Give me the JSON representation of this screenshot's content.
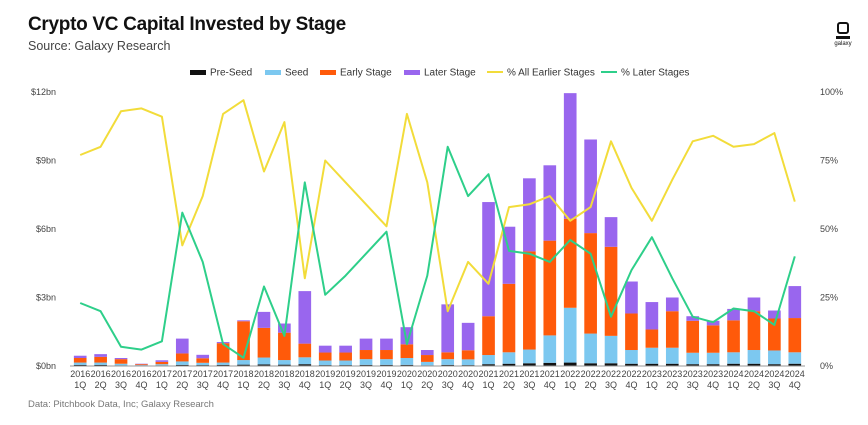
{
  "header": {
    "title": "Crypto VC Capital Invested by Stage",
    "subtitle": "Source: Galaxy Research",
    "logo_text": "galaxy"
  },
  "footer": {
    "note": "Data: Pitchbook Data, Inc; Galaxy Research"
  },
  "colors": {
    "pre_seed": "#111111",
    "seed": "#7cc8f0",
    "early": "#ff5a0a",
    "later": "#9966ee",
    "pct_earlier": "#f2dc3a",
    "pct_later": "#2ecf8a"
  },
  "chart_data": {
    "type": "bar",
    "stacked": true,
    "categories": [
      [
        "2016",
        "1Q"
      ],
      [
        "2016",
        "2Q"
      ],
      [
        "2016",
        "3Q"
      ],
      [
        "2016",
        "4Q"
      ],
      [
        "2017",
        "1Q"
      ],
      [
        "2017",
        "2Q"
      ],
      [
        "2017",
        "3Q"
      ],
      [
        "2017",
        "4Q"
      ],
      [
        "2018",
        "1Q"
      ],
      [
        "2018",
        "2Q"
      ],
      [
        "2018",
        "3Q"
      ],
      [
        "2018",
        "4Q"
      ],
      [
        "2019",
        "1Q"
      ],
      [
        "2019",
        "2Q"
      ],
      [
        "2019",
        "3Q"
      ],
      [
        "2019",
        "4Q"
      ],
      [
        "2020",
        "1Q"
      ],
      [
        "2020",
        "2Q"
      ],
      [
        "2020",
        "3Q"
      ],
      [
        "2020",
        "4Q"
      ],
      [
        "2021",
        "1Q"
      ],
      [
        "2021",
        "2Q"
      ],
      [
        "2021",
        "3Q"
      ],
      [
        "2021",
        "4Q"
      ],
      [
        "2022",
        "1Q"
      ],
      [
        "2022",
        "2Q"
      ],
      [
        "2022",
        "3Q"
      ],
      [
        "2022",
        "4Q"
      ],
      [
        "2023",
        "1Q"
      ],
      [
        "2023",
        "2Q"
      ],
      [
        "2023",
        "3Q"
      ],
      [
        "2023",
        "4Q"
      ],
      [
        "2024",
        "1Q"
      ],
      [
        "2024",
        "2Q"
      ],
      [
        "2024",
        "3Q"
      ],
      [
        "2024",
        "4Q"
      ]
    ],
    "series": [
      {
        "name": "Pre-Seed",
        "key": "pre_seed",
        "values": [
          0.05,
          0.05,
          0.03,
          0.01,
          0.03,
          0.05,
          0.04,
          0.05,
          0.06,
          0.07,
          0.06,
          0.08,
          0.04,
          0.04,
          0.05,
          0.05,
          0.05,
          0.03,
          0.05,
          0.04,
          0.08,
          0.1,
          0.12,
          0.14,
          0.15,
          0.12,
          0.12,
          0.1,
          0.1,
          0.1,
          0.08,
          0.08,
          0.1,
          0.1,
          0.08,
          0.1
        ]
      },
      {
        "name": "Seed",
        "key": "seed",
        "values": [
          0.1,
          0.1,
          0.07,
          0.03,
          0.05,
          0.15,
          0.1,
          0.1,
          0.2,
          0.3,
          0.2,
          0.3,
          0.2,
          0.2,
          0.25,
          0.25,
          0.3,
          0.15,
          0.25,
          0.25,
          0.4,
          0.5,
          0.6,
          1.2,
          2.4,
          1.3,
          1.2,
          0.6,
          0.7,
          0.7,
          0.5,
          0.5,
          0.5,
          0.6,
          0.6,
          0.5
        ]
      },
      {
        "name": "Early Stage",
        "key": "early",
        "values": [
          0.2,
          0.25,
          0.2,
          0.04,
          0.1,
          0.35,
          0.2,
          0.85,
          1.7,
          1.3,
          1.2,
          0.6,
          0.35,
          0.35,
          0.4,
          0.4,
          0.6,
          0.3,
          0.3,
          0.4,
          1.7,
          3.0,
          4.3,
          4.15,
          3.9,
          4.4,
          3.9,
          1.6,
          0.8,
          1.6,
          1.4,
          1.2,
          1.4,
          1.7,
          1.4,
          1.5
        ]
      },
      {
        "name": "Later Stage",
        "key": "later",
        "values": [
          0.1,
          0.12,
          0.05,
          0.02,
          0.07,
          0.65,
          0.15,
          0.05,
          0.04,
          0.7,
          0.4,
          2.3,
          0.3,
          0.3,
          0.5,
          0.5,
          0.75,
          0.22,
          2.1,
          1.2,
          5.0,
          2.5,
          3.2,
          3.3,
          5.5,
          4.1,
          1.3,
          1.4,
          1.2,
          0.6,
          0.2,
          0.2,
          0.5,
          0.6,
          0.35,
          1.4
        ]
      }
    ],
    "line_series": [
      {
        "name": "% All Earlier Stages",
        "key": "pct_earlier",
        "values": [
          77,
          80,
          93,
          94,
          91,
          44,
          62,
          92,
          97,
          71,
          89,
          32,
          75,
          67,
          59,
          51,
          92,
          67,
          20,
          38,
          30,
          58,
          59,
          62,
          53,
          58,
          82,
          65,
          53,
          68,
          82,
          84,
          80,
          81,
          85,
          60
        ]
      },
      {
        "name": "% Later Stages",
        "key": "pct_later",
        "values": [
          23,
          20,
          7,
          6,
          9,
          56,
          38,
          8,
          3,
          29,
          11,
          67,
          26,
          33,
          41,
          49,
          8,
          33,
          80,
          62,
          70,
          42,
          41,
          38,
          46,
          41,
          18,
          35,
          47,
          32,
          18,
          16,
          21,
          20,
          15,
          40
        ]
      }
    ],
    "y_left": {
      "min": 0,
      "max": 12,
      "ticks": [
        0,
        3,
        6,
        9,
        12
      ],
      "labels": [
        "$0bn",
        "$3bn",
        "$6bn",
        "$9bn",
        "$12bn"
      ]
    },
    "y_right": {
      "min": 0,
      "max": 100,
      "ticks": [
        0,
        25,
        50,
        75,
        100
      ],
      "labels": [
        "0%",
        "25%",
        "50%",
        "75%",
        "100%"
      ]
    },
    "grid": false,
    "legend_position": "top"
  }
}
